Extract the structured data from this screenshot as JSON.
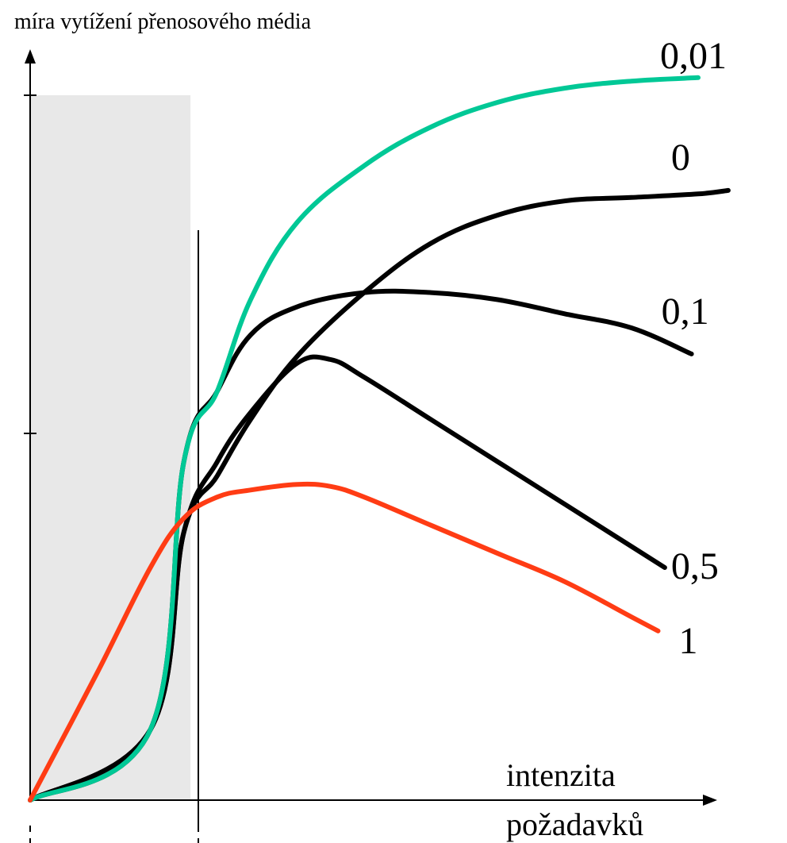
{
  "chart_data": {
    "type": "line",
    "ylabel": "míra vytížení přenosového média",
    "xlabel_line1": "intenzita",
    "xlabel_line2": "požadavků",
    "xlim": [
      0,
      10
    ],
    "ylim": [
      0,
      1
    ],
    "grid": false,
    "legend": "inline-right",
    "shaded_region_x": [
      0,
      2.4
    ],
    "series": [
      {
        "name": "0,01",
        "color": "#00c896",
        "x": [
          0,
          1.8,
          2.3,
          2.8,
          3.3,
          4.0,
          5.0,
          6.0,
          7.0,
          8.0,
          9.0,
          10.0
        ],
        "y": [
          0,
          0.1,
          0.48,
          0.58,
          0.71,
          0.82,
          0.9,
          0.955,
          0.99,
          1.01,
          1.02,
          1.025
        ]
      },
      {
        "name": "0",
        "color": "#000000",
        "x": [
          0,
          1.8,
          2.3,
          2.8,
          3.3,
          4.0,
          5.0,
          6.0,
          7.0,
          8.0,
          9.0,
          10.0,
          10.45
        ],
        "y": [
          0,
          0.1,
          0.38,
          0.46,
          0.54,
          0.63,
          0.72,
          0.79,
          0.83,
          0.85,
          0.855,
          0.86,
          0.865
        ]
      },
      {
        "name": "0,1",
        "color": "#000000",
        "x": [
          0,
          1.8,
          2.3,
          2.8,
          3.3,
          4.0,
          5.0,
          6.0,
          7.0,
          8.0,
          9.0,
          9.9
        ],
        "y": [
          0,
          0.1,
          0.48,
          0.58,
          0.66,
          0.7,
          0.72,
          0.72,
          0.71,
          0.69,
          0.67,
          0.633
        ]
      },
      {
        "name": "0,5",
        "color": "#000000",
        "x": [
          0,
          1.8,
          2.3,
          2.8,
          3.3,
          4.0,
          4.5,
          5.0,
          6.0,
          7.0,
          8.0,
          9.0,
          9.5
        ],
        "y": [
          0,
          0.1,
          0.38,
          0.48,
          0.55,
          0.62,
          0.625,
          0.6,
          0.54,
          0.48,
          0.42,
          0.36,
          0.33
        ]
      },
      {
        "name": "1",
        "color": "#ff3c14",
        "x": [
          0,
          1.0,
          1.8,
          2.3,
          2.8,
          3.3,
          4.0,
          4.5,
          5.0,
          6.0,
          7.0,
          8.0,
          9.0,
          9.4
        ],
        "y": [
          0,
          0.18,
          0.33,
          0.4,
          0.43,
          0.44,
          0.448,
          0.445,
          0.43,
          0.39,
          0.35,
          0.31,
          0.26,
          0.24
        ]
      }
    ]
  }
}
